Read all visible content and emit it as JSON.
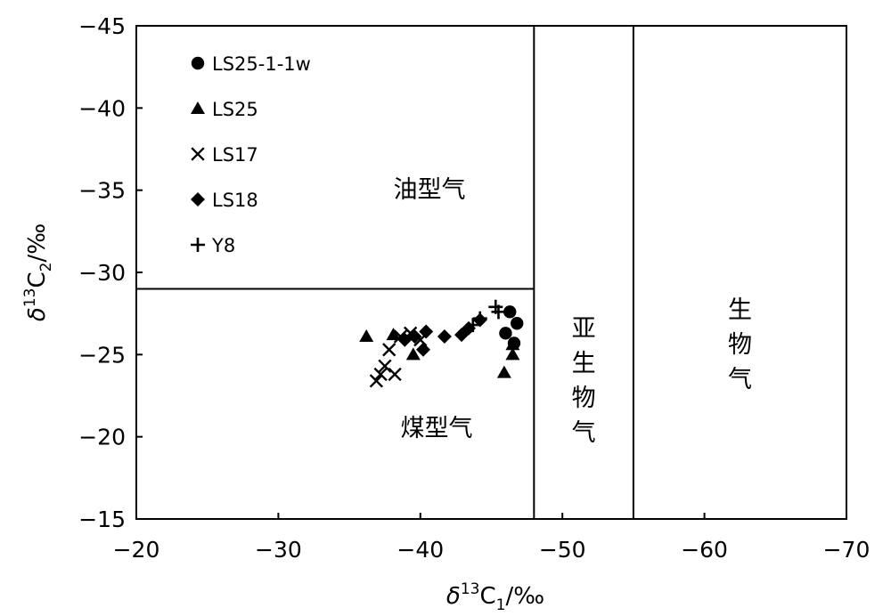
{
  "chart_data": {
    "type": "scatter",
    "x_axis": {
      "label_prefix": "δ",
      "label_sup": "13",
      "label_main": "C",
      "label_sub": "1",
      "label_suffix": "/‰",
      "range": [
        -20,
        -70
      ],
      "ticks": [
        -20,
        -30,
        -40,
        -50,
        -60,
        -70
      ],
      "tick_labels": [
        "−20",
        "−30",
        "−40",
        "−50",
        "−60",
        "−70"
      ]
    },
    "y_axis": {
      "label_prefix": "δ",
      "label_sup": "13",
      "label_main": "C",
      "label_sub": "2",
      "label_suffix": "/‰",
      "range": [
        -15,
        -45
      ],
      "ticks": [
        -15,
        -20,
        -25,
        -30,
        -35,
        -40,
        -45
      ],
      "tick_labels": [
        "−15",
        "−20",
        "−25",
        "−30",
        "−35",
        "−40",
        "−45"
      ]
    },
    "grid": false,
    "legend_position": "top-left",
    "region_boundaries": {
      "horizontal_y": -29,
      "horizontal_x_to": -48,
      "vertical_x": [
        -48,
        -55
      ]
    },
    "region_labels": {
      "oil_type": "油型气",
      "coal_type": "煤型气",
      "sub_bio": [
        "亚",
        "生",
        "物",
        "气"
      ],
      "bio": [
        "生",
        "物",
        "气"
      ]
    },
    "series": [
      {
        "name": "LS25-1-1w",
        "marker": "circle",
        "points": [
          [
            -46.0,
            -26.3
          ],
          [
            -46.3,
            -27.6
          ],
          [
            -46.8,
            -26.9
          ],
          [
            -46.6,
            -25.7
          ]
        ]
      },
      {
        "name": "LS25",
        "marker": "triangle",
        "points": [
          [
            -36.2,
            -26.1
          ],
          [
            -38.1,
            -26.2
          ],
          [
            -39.5,
            -25.0
          ],
          [
            -45.9,
            -23.9
          ],
          [
            -46.5,
            -25.0
          ],
          [
            -46.5,
            -25.6
          ]
        ]
      },
      {
        "name": "LS17",
        "marker": "x",
        "points": [
          [
            -36.9,
            -23.4
          ],
          [
            -37.2,
            -23.8
          ],
          [
            -37.5,
            -24.3
          ],
          [
            -38.2,
            -23.8
          ],
          [
            -37.8,
            -25.3
          ],
          [
            -38.6,
            -26.1
          ],
          [
            -39.3,
            -26.3
          ],
          [
            -40.0,
            -25.9
          ]
        ]
      },
      {
        "name": "LS18",
        "marker": "diamond",
        "points": [
          [
            -38.9,
            -25.9
          ],
          [
            -39.6,
            -26.1
          ],
          [
            -40.2,
            -25.3
          ],
          [
            -40.4,
            -26.4
          ],
          [
            -41.7,
            -26.1
          ],
          [
            -42.9,
            -26.2
          ],
          [
            -43.4,
            -26.6
          ],
          [
            -44.2,
            -27.1
          ]
        ]
      },
      {
        "name": "Y8",
        "marker": "plus",
        "points": [
          [
            -43.7,
            -26.8
          ],
          [
            -44.2,
            -27.2
          ],
          [
            -45.3,
            -27.9
          ],
          [
            -45.5,
            -27.6
          ]
        ]
      }
    ]
  }
}
